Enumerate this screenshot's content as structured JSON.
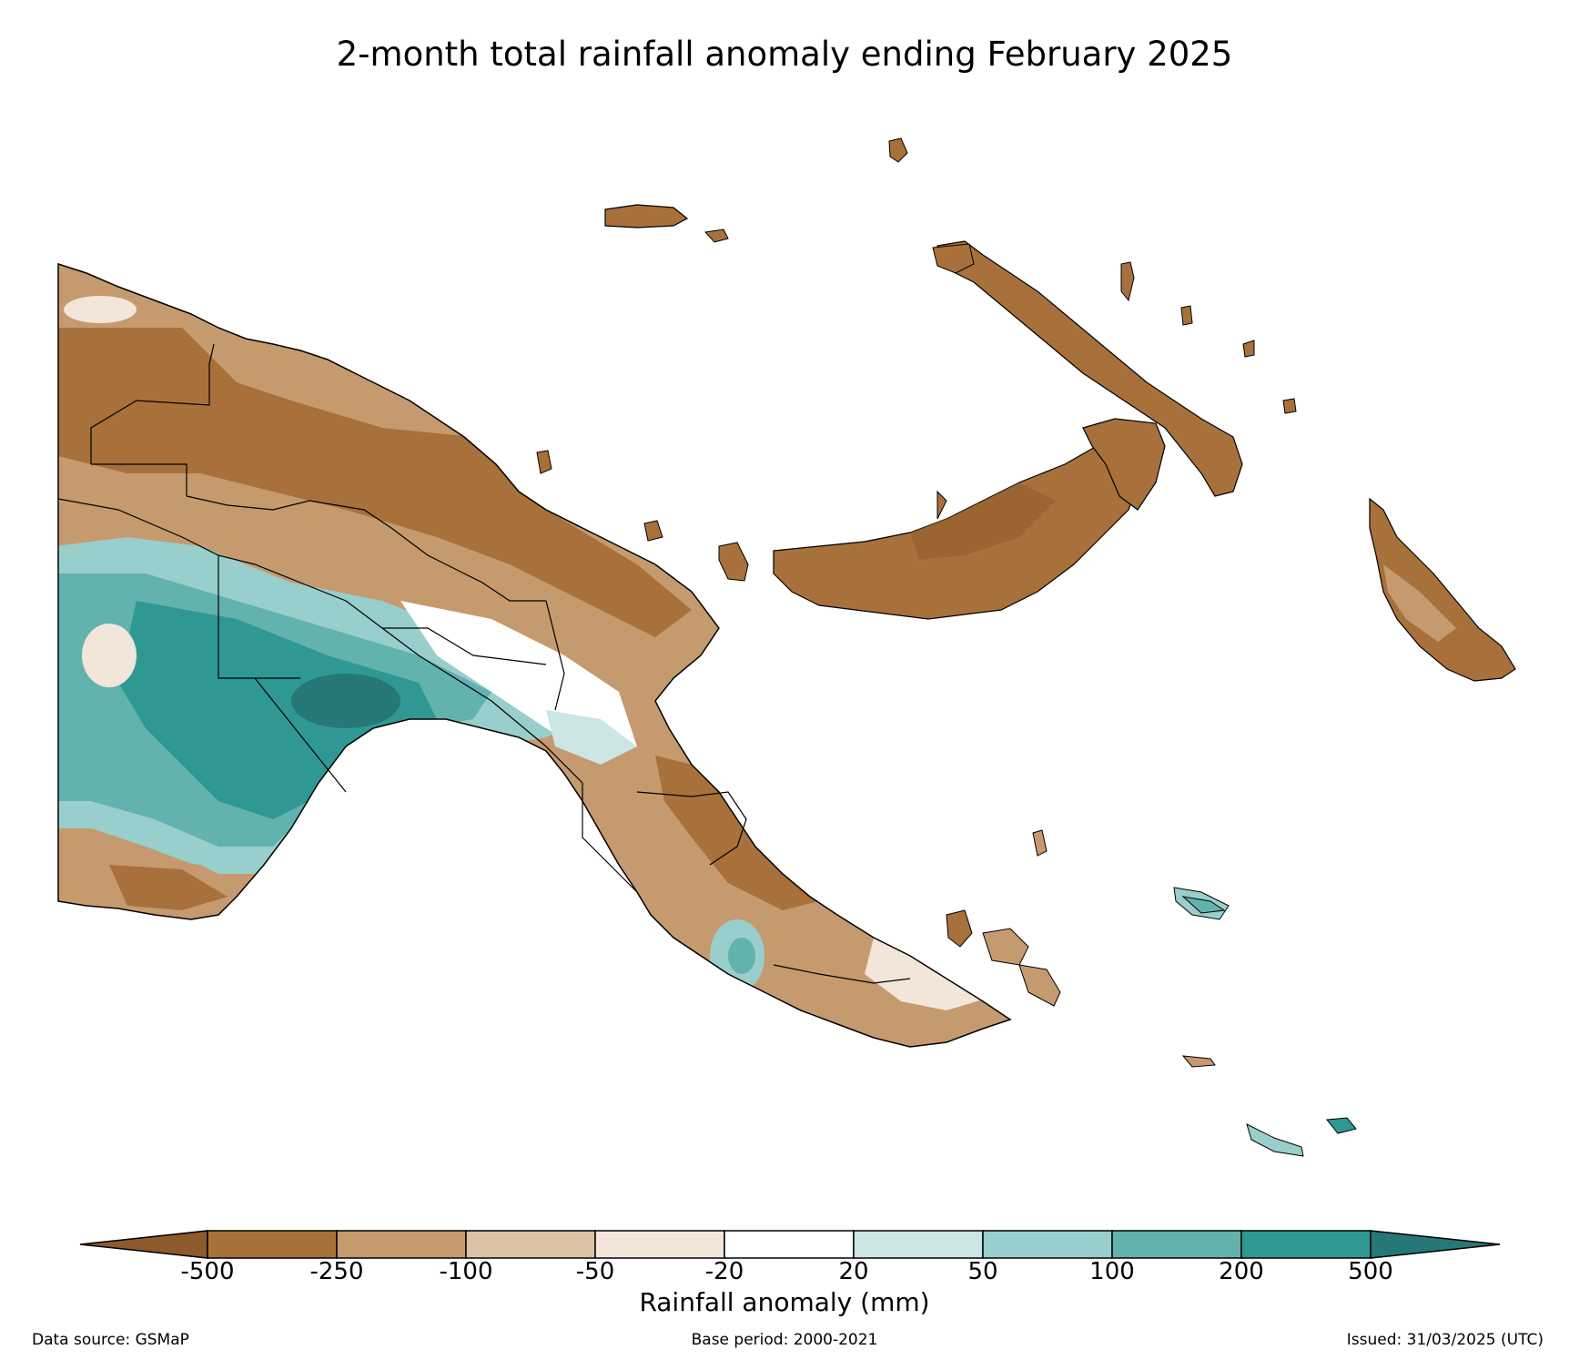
{
  "title": "2-month total rainfall anomaly ending February 2025",
  "legend": {
    "label": "Rainfall anomaly (mm)",
    "ticks": [
      "-500",
      "-250",
      "-100",
      "-50",
      "-20",
      "20",
      "50",
      "100",
      "200",
      "500"
    ],
    "colors": {
      "lt_-500": "#8c5a2b",
      "-500_-250": "#a8703b",
      "-250_-100": "#c59a6e",
      "-100_-50": "#dcc1a4",
      "-50_-20": "#f2e6db",
      "-20_20": "#ffffff",
      "20_50": "#cbe6e4",
      "50_100": "#98cecb",
      "100_200": "#62b2ae",
      "200_500": "#2f9893",
      "gt_500": "#257875"
    }
  },
  "footer": {
    "source": "Data source: GSMaP",
    "base_period": "Base period: 2000-2021",
    "issued": "Issued: 31/03/2025 (UTC)"
  }
}
